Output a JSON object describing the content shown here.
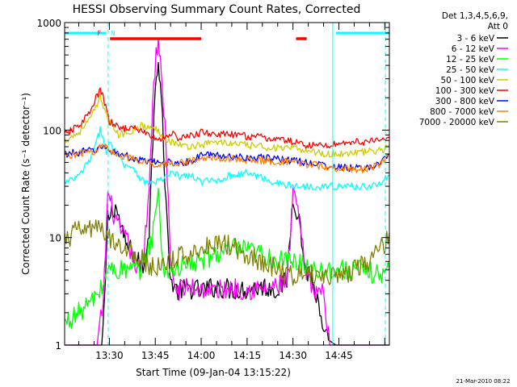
{
  "chart_data": {
    "type": "line",
    "title": "HESSI Observing Summary Count Rates, Corrected",
    "xlabel": "Start Time (09-Jan-04 13:15:22)",
    "ylabel": "Corrected Count Rate (s⁻¹ detector⁻¹)",
    "yscale": "log",
    "ylim": [
      1,
      1000
    ],
    "xlim_minutes_from_13_00": [
      15.37,
      121.5
    ],
    "x_ticks": [
      {
        "minutes": 30,
        "label": "13:30"
      },
      {
        "minutes": 45,
        "label": "13:45"
      },
      {
        "minutes": 60,
        "label": "14:00"
      },
      {
        "minutes": 75,
        "label": "14:15"
      },
      {
        "minutes": 90,
        "label": "14:30"
      },
      {
        "minutes": 105,
        "label": "14:45"
      }
    ],
    "y_ticks": [
      {
        "value": 1,
        "label": "1"
      },
      {
        "value": 10,
        "label": "10"
      },
      {
        "value": 100,
        "label": "100"
      },
      {
        "value": 1000,
        "label": "1000"
      }
    ],
    "legend_header": [
      "Det 1,3,4,5,6,9,",
      "Att 0"
    ],
    "legend_position": "right, outside plot",
    "x_unit": "minutes after 13:00",
    "series": [
      {
        "name": "3 - 6 keV",
        "color": "#000000",
        "x": [
          15.4,
          27.5,
          28.3,
          29.5,
          32,
          35,
          38,
          41,
          43,
          45,
          46,
          47,
          48.5,
          50,
          52,
          56,
          60,
          65,
          70,
          75,
          80,
          85,
          88,
          90,
          92,
          94,
          96,
          98,
          100,
          104,
          108,
          112,
          116,
          119,
          121.5
        ],
        "y": [
          1.0,
          1.0,
          2.0,
          15,
          20,
          9,
          7,
          5,
          12,
          300,
          450,
          200,
          20,
          4,
          3.2,
          3.4,
          3.2,
          3.5,
          3.3,
          3.3,
          3.5,
          3.3,
          4,
          25,
          15,
          5,
          4.4,
          2.5,
          1.2,
          1.0,
          1.0,
          1.0,
          1.0,
          1.0,
          1.0
        ]
      },
      {
        "name": "6 - 12 keV",
        "color": "#ff00ff",
        "x": [
          15.4,
          22,
          26,
          28,
          29.5,
          31,
          33,
          36,
          38,
          40,
          41,
          43,
          44.5,
          46,
          47,
          48.5,
          50,
          52,
          56,
          60,
          65,
          70,
          75,
          80,
          85,
          88,
          89,
          90,
          92,
          94,
          96,
          100,
          102,
          104,
          106,
          108,
          112,
          116,
          121.5
        ],
        "y": [
          1.0,
          1.0,
          1.0,
          2.5,
          26,
          18,
          12,
          9,
          6,
          5,
          6,
          30,
          300,
          750,
          300,
          80,
          5,
          3.2,
          3.5,
          3.3,
          3.2,
          3.4,
          3.3,
          3.3,
          3.5,
          4,
          8,
          26,
          15,
          5,
          3.5,
          3.0,
          1.0,
          1.0,
          1.0,
          1.0,
          1.0,
          1.0,
          1.0
        ]
      },
      {
        "name": "12 - 25 keV",
        "color": "#00ff00",
        "x": [
          15.4,
          20,
          24,
          28,
          29,
          30,
          35,
          40,
          44,
          45,
          46,
          46.5,
          47,
          48,
          50,
          55,
          60,
          65,
          70,
          75,
          80,
          85,
          90,
          95,
          100,
          105,
          110,
          115,
          119,
          121.5
        ],
        "y": [
          1.6,
          2.0,
          2.5,
          3.5,
          5.0,
          5.0,
          5.0,
          5.0,
          10,
          18,
          25,
          15,
          8,
          5,
          5,
          5.5,
          6,
          7,
          8,
          7.5,
          7,
          6,
          6,
          5.5,
          5,
          5,
          5,
          4.8,
          4.5,
          5
        ]
      },
      {
        "name": "25 - 50 keV",
        "color": "#00ffff",
        "x": [
          15.4,
          20,
          24,
          26,
          27,
          28,
          29,
          30,
          32,
          35,
          38,
          40,
          42,
          44,
          46,
          48,
          50,
          53,
          56,
          60,
          65,
          70,
          75,
          80,
          85,
          90,
          95,
          100,
          105,
          110,
          115,
          119,
          121.5
        ],
        "y": [
          32,
          37,
          55,
          80,
          100,
          90,
          60,
          75,
          65,
          48,
          45,
          36,
          32,
          32,
          34,
          35,
          40,
          37,
          38,
          33,
          34,
          38,
          40,
          36,
          32,
          30,
          30,
          30,
          30,
          30,
          30,
          32,
          38
        ]
      },
      {
        "name": "50 - 100 keV",
        "color": "#cccc00",
        "x": [
          15.4,
          20,
          24,
          26,
          27,
          28,
          30,
          33,
          36,
          40,
          43,
          46,
          49,
          52,
          55,
          60,
          65,
          70,
          75,
          80,
          85,
          90,
          95,
          100,
          105,
          110,
          115,
          119,
          121.5
        ],
        "y": [
          80,
          95,
          130,
          170,
          200,
          170,
          120,
          90,
          95,
          110,
          105,
          100,
          80,
          75,
          70,
          73,
          78,
          75,
          72,
          70,
          68,
          67,
          65,
          60,
          60,
          62,
          63,
          65,
          72
        ]
      },
      {
        "name": "100 - 300 keV",
        "color": "#ff0000",
        "x": [
          15.4,
          20,
          24,
          26,
          27,
          28,
          30,
          33,
          36,
          40,
          43,
          46,
          48,
          50,
          52,
          55,
          60,
          65,
          70,
          75,
          80,
          85,
          90,
          95,
          100,
          105,
          110,
          115,
          119,
          121.5
        ],
        "y": [
          90,
          110,
          150,
          210,
          230,
          200,
          120,
          105,
          105,
          100,
          90,
          80,
          85,
          95,
          85,
          85,
          95,
          92,
          90,
          88,
          85,
          82,
          78,
          72,
          72,
          75,
          78,
          78,
          80,
          85
        ]
      },
      {
        "name": "300 - 800 keV",
        "color": "#0000ff",
        "x": [
          15.4,
          20,
          25,
          28,
          30,
          35,
          40,
          45,
          50,
          55,
          58,
          60,
          65,
          70,
          75,
          80,
          85,
          90,
          95,
          100,
          105,
          110,
          115,
          119,
          121.5
        ],
        "y": [
          60,
          62,
          65,
          70,
          65,
          58,
          52,
          50,
          50,
          50,
          52,
          60,
          58,
          57,
          56,
          55,
          54,
          52,
          50,
          47,
          45,
          44,
          45,
          50,
          60
        ]
      },
      {
        "name": "800 - 7000 keV",
        "color": "#ff8000",
        "x": [
          15.4,
          20,
          25,
          28,
          30,
          35,
          40,
          45,
          50,
          55,
          60,
          65,
          70,
          75,
          80,
          85,
          90,
          95,
          100,
          105,
          110,
          115,
          119,
          121.5
        ],
        "y": [
          58,
          60,
          63,
          72,
          65,
          57,
          50,
          48,
          49,
          50,
          54,
          55,
          54,
          53,
          52,
          51,
          50,
          48,
          46,
          44,
          43,
          44,
          48,
          58
        ]
      },
      {
        "name": "7000 - 20000 keV",
        "color": "#808000",
        "x": [
          15.4,
          18,
          22,
          26,
          28,
          30,
          33,
          36,
          40,
          43,
          46,
          50,
          55,
          60,
          65,
          70,
          75,
          80,
          85,
          90,
          95,
          100,
          105,
          110,
          115,
          119,
          121.5
        ],
        "y": [
          9,
          11,
          12,
          12,
          11,
          10,
          9,
          7.5,
          6.5,
          5.5,
          5.2,
          6,
          7,
          8,
          9,
          8.5,
          7,
          6,
          5,
          4.5,
          4.5,
          4.5,
          4.5,
          5,
          6,
          8,
          11
        ]
      }
    ],
    "attenuator_intervals": [
      [
        15.37,
        29.0
      ],
      [
        104.0,
        121.5
      ]
    ],
    "dashed_markers": [
      29.6,
      120.2
    ],
    "solid_markers": [
      103.0
    ],
    "markers": [
      {
        "label": "F",
        "minutes": 28.0
      },
      {
        "label": "N",
        "minutes": 29.6
      }
    ],
    "flare_flag_intervals": [
      [
        30.2,
        60.0
      ],
      [
        91.0,
        94.5
      ]
    ],
    "footer_timestamp": "21-Mar-2010 08:22"
  },
  "colors": {
    "attenuator": "#00ffff",
    "flare_flag": "#ff0000",
    "marker_F": "#ff0000",
    "marker_N": "#00ffff",
    "axes": "#000000",
    "background": "#ffffff"
  }
}
